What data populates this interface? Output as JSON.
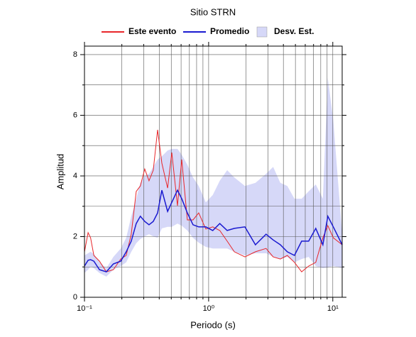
{
  "chart_data": {
    "type": "line",
    "title": "Sitio STRN",
    "xlabel": "Periodo (s)",
    "ylabel": "Amplitud",
    "xscale": "log",
    "grid": true,
    "xlim": [
      0.1,
      11.9
    ],
    "ylim": [
      0,
      8.28
    ],
    "xticks": [
      {
        "value": 0.1,
        "label": "10⁻¹"
      },
      {
        "value": 1,
        "label": "10⁰"
      },
      {
        "value": 10,
        "label": "10¹"
      }
    ],
    "xminor_ticks": [
      0.2,
      0.3,
      0.4,
      0.5,
      0.6,
      0.7,
      0.8,
      0.9,
      2,
      3,
      4,
      5,
      6,
      7,
      8,
      9
    ],
    "yticks": [
      0,
      2,
      4,
      6,
      8
    ],
    "yminor_ticks": [
      1,
      3,
      5,
      7
    ],
    "x": [
      0.1,
      0.107,
      0.112,
      0.119,
      0.132,
      0.15,
      0.171,
      0.196,
      0.217,
      0.238,
      0.261,
      0.282,
      0.306,
      0.331,
      0.358,
      0.388,
      0.42,
      0.467,
      0.505,
      0.561,
      0.607,
      0.674,
      0.749,
      0.832,
      0.949,
      1.08,
      1.23,
      1.41,
      1.61,
      1.96,
      2.38,
      2.9,
      3.31,
      3.78,
      4.3,
      4.91,
      5.61,
      6.39,
      7.29,
      8.32,
      9.12,
      10.1,
      11.9
    ],
    "series": [
      {
        "name": "Este evento",
        "color": "#e8262a",
        "values": [
          1.5,
          2.13,
          1.96,
          1.38,
          1.19,
          0.84,
          0.91,
          1.26,
          1.38,
          2.08,
          3.49,
          3.67,
          4.23,
          3.84,
          4.19,
          5.52,
          4.42,
          3.6,
          4.77,
          3.02,
          4.54,
          2.55,
          2.55,
          2.78,
          2.25,
          2.32,
          2.2,
          1.85,
          1.5,
          1.33,
          1.5,
          1.61,
          1.33,
          1.26,
          1.38,
          1.15,
          0.84,
          1.03,
          1.15,
          1.96,
          2.36,
          1.96,
          1.73
        ]
      },
      {
        "name": "Promedio",
        "color": "#1a1ad0",
        "values": [
          1.03,
          1.22,
          1.24,
          1.19,
          0.91,
          0.84,
          1.1,
          1.19,
          1.5,
          1.85,
          2.43,
          2.67,
          2.5,
          2.39,
          2.5,
          2.78,
          3.53,
          2.83,
          3.13,
          3.53,
          3.25,
          2.78,
          2.39,
          2.32,
          2.32,
          2.2,
          2.43,
          2.2,
          2.27,
          2.32,
          1.73,
          2.08,
          1.89,
          1.73,
          1.5,
          1.38,
          1.85,
          1.85,
          2.27,
          1.73,
          2.67,
          2.32,
          1.73
        ]
      },
      {
        "name": "Desv. Est.",
        "color": "#d6d8f8",
        "lower": [
          0.8,
          0.91,
          1.01,
          0.96,
          0.8,
          0.68,
          0.91,
          1.03,
          1.15,
          1.5,
          1.78,
          1.92,
          2.01,
          2.08,
          2.01,
          1.96,
          2.27,
          2.32,
          2.32,
          2.43,
          2.36,
          2.2,
          1.96,
          1.8,
          1.66,
          1.61,
          1.61,
          1.61,
          1.5,
          1.38,
          1.45,
          1.45,
          1.33,
          1.26,
          1.33,
          1.15,
          1.26,
          1.33,
          1.03,
          0.96,
          0.98,
          1.03,
          0.96
        ],
        "upper": [
          1.38,
          1.45,
          1.5,
          1.43,
          1.15,
          0.96,
          1.33,
          1.61,
          1.96,
          2.67,
          3.25,
          3.77,
          4.0,
          4.07,
          4.3,
          4.54,
          4.65,
          4.84,
          4.89,
          4.89,
          4.7,
          4.37,
          3.95,
          3.67,
          3.13,
          3.37,
          3.84,
          4.19,
          3.95,
          3.67,
          3.77,
          4.07,
          4.3,
          3.77,
          3.67,
          3.25,
          3.25,
          3.49,
          3.72,
          3.25,
          7.23,
          5.82,
          2.08
        ]
      }
    ]
  }
}
